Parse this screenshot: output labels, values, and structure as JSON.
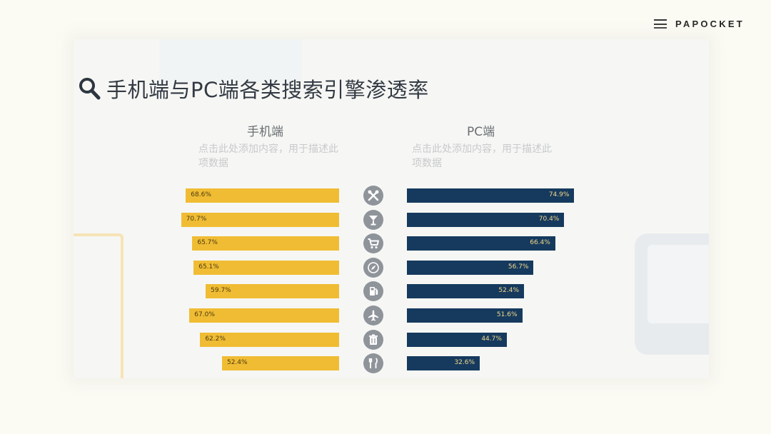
{
  "brand": {
    "name": "PAPOCKET",
    "icon": "menu-icon"
  },
  "slide": {
    "title": "手机端与PC端各类搜索引擎渗透率",
    "title_icon": "search-icon"
  },
  "chart_data": {
    "type": "bar",
    "layout": "butterfly",
    "title": "手机端与PC端各类搜索引擎渗透率",
    "categories": [
      "tools-icon",
      "cocktail-icon",
      "shopping-cart-icon",
      "compass-icon",
      "fuel-icon",
      "airplane-icon",
      "trash-icon",
      "restaurant-icon"
    ],
    "series": [
      {
        "name": "手机端",
        "description": "点击此处添加内容，用于描述此项数据",
        "color": "#f0bc33",
        "values": [
          68.6,
          70.7,
          65.7,
          65.1,
          59.7,
          67.0,
          62.2,
          52.4
        ],
        "labels": [
          "68.6%",
          "70.7%",
          "65.7%",
          "65.1%",
          "59.7%",
          "67.0%",
          "62.2%",
          "52.4%"
        ]
      },
      {
        "name": "PC端",
        "description": "点击此处添加内容，用于描述此项数据",
        "color": "#163a5e",
        "values": [
          74.9,
          70.4,
          66.4,
          56.7,
          52.4,
          51.6,
          44.7,
          32.6
        ],
        "labels": [
          "74.9%",
          "70.4%",
          "66.4%",
          "56.7%",
          "52.4%",
          "51.6%",
          "44.7%",
          "32.6%"
        ]
      }
    ],
    "icon_color": "#8f949a",
    "grid": false,
    "legend": "none"
  }
}
